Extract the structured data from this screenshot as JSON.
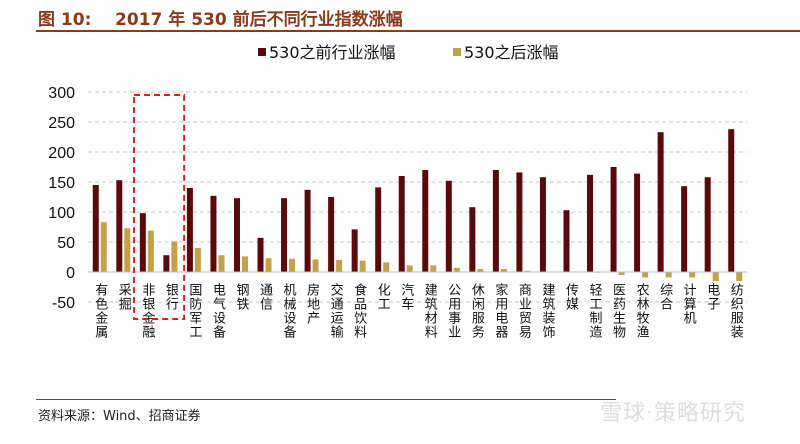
{
  "header": {
    "title": "图 10:    2017 年 530 前后不同行业指数涨幅"
  },
  "footer": {
    "source": "资料来源：Wind、招商证券",
    "watermark": "雪球·策略研究"
  },
  "chart_data": {
    "type": "bar",
    "title": "",
    "xlabel": "",
    "ylabel": "",
    "ylim": [
      -50,
      300
    ],
    "yticks": [
      -50,
      0,
      50,
      100,
      150,
      200,
      250,
      300
    ],
    "grid": true,
    "legend_position": "top-right",
    "categories": [
      "有色金属",
      "采掘",
      "非银金融",
      "银行",
      "国防军工",
      "电气设备",
      "钢铁",
      "通信",
      "机械设备",
      "房地产",
      "交通运输",
      "食品饮料",
      "化工",
      "汽车",
      "建筑材料",
      "公用事业",
      "休闲服务",
      "家用电器",
      "商业贸易",
      "建筑装饰",
      "传媒",
      "轻工制造",
      "医药生物",
      "农林牧渔",
      "综合",
      "计算机",
      "电子",
      "纺织服装"
    ],
    "series": [
      {
        "name": "530之前行业涨幅",
        "color": "#5a0a0a",
        "values": [
          145,
          153,
          98,
          28,
          140,
          127,
          123,
          57,
          123,
          137,
          125,
          71,
          141,
          160,
          170,
          152,
          108,
          170,
          166,
          158,
          103,
          162,
          175,
          164,
          233,
          143,
          158,
          238
        ]
      },
      {
        "name": "530之后涨幅",
        "color": "#c4a24c",
        "values": [
          83,
          73,
          69,
          51,
          40,
          28,
          26,
          23,
          22,
          21,
          20,
          19,
          16,
          11,
          11,
          7,
          5,
          5,
          2,
          0,
          0,
          -1,
          -5,
          -9,
          -9,
          -9,
          -15,
          -15
        ]
      }
    ],
    "annotation": {
      "type": "dashed-box",
      "color": "#d42020",
      "categories": [
        "非银金融",
        "银行"
      ]
    }
  }
}
